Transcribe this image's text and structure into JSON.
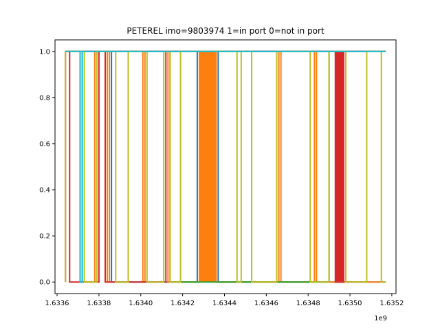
{
  "chart_data": {
    "type": "line",
    "title": "PETEREL imo=9803974 1=in port 0=not in port",
    "xlabel": "",
    "ylabel": "",
    "x_offset_label": "1e9",
    "xlim": [
      1.63359,
      1.63522
    ],
    "ylim": [
      -0.05,
      1.05
    ],
    "x_ticks": [
      1.6336,
      1.6338,
      1.634,
      1.6342,
      1.6344,
      1.6346,
      1.6348,
      1.635,
      1.6352
    ],
    "x_tick_labels": [
      "1.6336",
      "1.6338",
      "1.6340",
      "1.6342",
      "1.6344",
      "1.6346",
      "1.6348",
      "1.6350",
      "1.6352"
    ],
    "y_ticks": [
      0.0,
      0.2,
      0.4,
      0.6,
      0.8,
      1.0
    ],
    "y_tick_labels": [
      "0.0",
      "0.2",
      "0.4",
      "0.6",
      "0.8",
      "1.0"
    ],
    "grid": false,
    "legend": "none",
    "series": [
      {
        "color": "#1f77b4",
        "x": [
          1.63364,
          1.63371,
          1.63371,
          1.63372,
          1.63372,
          1.63386,
          1.63386,
          1.63427,
          1.63427,
          1.63437,
          1.63437,
          1.63517
        ],
        "y": [
          1,
          1,
          0,
          0,
          1,
          1,
          0,
          0,
          1,
          1,
          0,
          0
        ]
      },
      {
        "color": "#ff7f0e",
        "x": [
          1.63364,
          1.63378,
          1.63378,
          1.63379,
          1.63379,
          1.63384,
          1.63384,
          1.63385,
          1.63385,
          1.63401,
          1.63401,
          1.63402,
          1.63402,
          1.63413,
          1.63413,
          1.63428,
          1.63428,
          1.63436,
          1.63436,
          1.63466,
          1.63466,
          1.63467,
          1.63467,
          1.63483,
          1.63483,
          1.63484,
          1.63484,
          1.63517
        ],
        "y": [
          1,
          1,
          0,
          0,
          1,
          1,
          0,
          0,
          1,
          1,
          0,
          0,
          1,
          1,
          0,
          0,
          1,
          1,
          0,
          0,
          1,
          1,
          0,
          0,
          1,
          1,
          0,
          0
        ]
      },
      {
        "color": "#2ca02c",
        "x": [
          1.63364,
          1.63414,
          1.63414,
          1.6349,
          1.6349,
          1.63517
        ],
        "y": [
          1,
          1,
          0,
          0,
          1,
          1
        ]
      },
      {
        "color": "#d62728",
        "x": [
          1.63364,
          1.63364,
          1.63366,
          1.63366,
          1.6338,
          1.6338,
          1.63383,
          1.63383,
          1.63412,
          1.63412,
          1.63493,
          1.63493,
          1.63497,
          1.63497,
          1.63517
        ],
        "y": [
          0,
          1,
          1,
          0,
          0,
          1,
          1,
          0,
          0,
          1,
          1,
          0,
          0,
          1,
          1
        ]
      },
      {
        "color": "#9467bd",
        "x": [
          1.63364,
          1.63497,
          1.63497,
          1.63517
        ],
        "y": [
          1,
          1,
          1,
          1
        ]
      },
      {
        "color": "#8c564b",
        "x": [
          1.63364,
          1.63517
        ],
        "y": [
          1,
          1
        ]
      },
      {
        "color": "#e377c2",
        "x": [
          1.63364,
          1.63517
        ],
        "y": [
          1,
          1
        ]
      },
      {
        "color": "#7f7f7f",
        "x": [
          1.63364,
          1.63517
        ],
        "y": [
          1,
          1
        ]
      },
      {
        "color": "#bcbd22",
        "x": [
          1.63364,
          1.63364,
          1.63373,
          1.63373,
          1.63379,
          1.63379,
          1.63388,
          1.63388,
          1.63394,
          1.63394,
          1.63403,
          1.63403,
          1.63411,
          1.63411,
          1.63414,
          1.63414,
          1.63419,
          1.63419,
          1.63446,
          1.63446,
          1.63448,
          1.63448,
          1.63453,
          1.63453,
          1.63465,
          1.63465,
          1.63481,
          1.63481,
          1.6349,
          1.6349,
          1.63498,
          1.63498,
          1.63508,
          1.63508,
          1.63515,
          1.63515,
          1.63517
        ],
        "y": [
          0,
          1,
          1,
          0,
          0,
          1,
          1,
          0,
          0,
          1,
          1,
          0,
          0,
          1,
          1,
          0,
          0,
          1,
          1,
          0,
          0,
          1,
          1,
          0,
          0,
          1,
          1,
          0,
          0,
          1,
          1,
          0,
          0,
          1,
          1,
          0,
          0
        ]
      },
      {
        "color": "#17becf",
        "x": [
          1.63364,
          1.63371,
          1.63371,
          1.63372,
          1.63372,
          1.63517
        ],
        "y": [
          1,
          1,
          0,
          0,
          1,
          1
        ]
      }
    ],
    "dense_bands": [
      {
        "color": "#ff7f0e",
        "x_start": 1.63428,
        "x_end": 1.63436
      },
      {
        "color": "#d62728",
        "x_start": 1.63493,
        "x_end": 1.63497
      }
    ]
  }
}
